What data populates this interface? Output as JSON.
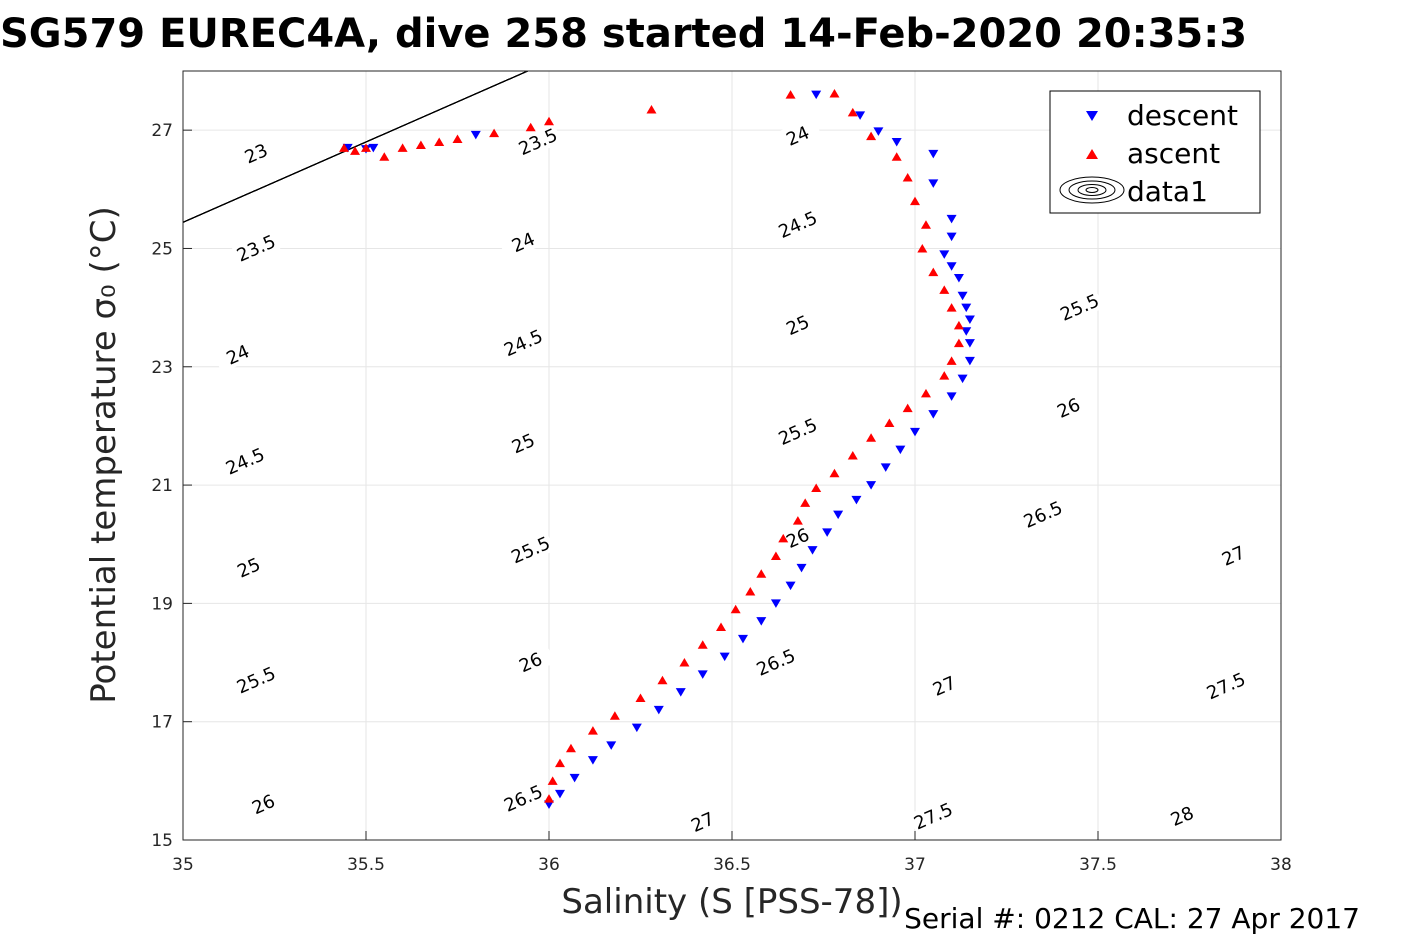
{
  "chart_data": {
    "type": "scatter",
    "title": "SG579 EUREC4A, dive 258 started 14-Feb-2020 20:35:3",
    "xlabel": "Salinity (S [PSS-78])",
    "ylabel": "Potential temperature σ₀ (°C)",
    "xlim": [
      35,
      38
    ],
    "ylim": [
      15,
      28
    ],
    "xticks": [
      "35",
      "35.5",
      "36",
      "36.5",
      "37",
      "37.5",
      "38"
    ],
    "yticks": [
      "15",
      "17",
      "19",
      "21",
      "23",
      "25",
      "27"
    ],
    "grid": true,
    "legend_position": "top-right",
    "legend": [
      "descent",
      "ascent",
      "data1"
    ],
    "footer": "Serial #: 0212  CAL: 27 Apr 2017",
    "contour_levels": [
      23,
      23.5,
      24,
      24.5,
      25,
      25.5,
      26,
      26.5,
      27,
      27.5,
      28
    ],
    "contour_labels": [
      {
        "text": "23",
        "x": 35.2,
        "y": 26.6
      },
      {
        "text": "23.5",
        "x": 35.2,
        "y": 25.0
      },
      {
        "text": "24",
        "x": 35.15,
        "y": 23.2
      },
      {
        "text": "24.5",
        "x": 35.17,
        "y": 21.4
      },
      {
        "text": "25",
        "x": 35.18,
        "y": 19.6
      },
      {
        "text": "25.5",
        "x": 35.2,
        "y": 17.7
      },
      {
        "text": "26",
        "x": 35.22,
        "y": 15.6
      },
      {
        "text": "23.5",
        "x": 35.97,
        "y": 26.8
      },
      {
        "text": "24",
        "x": 35.93,
        "y": 25.1
      },
      {
        "text": "24.5",
        "x": 35.93,
        "y": 23.4
      },
      {
        "text": "25",
        "x": 35.93,
        "y": 21.7
      },
      {
        "text": "25.5",
        "x": 35.95,
        "y": 19.9
      },
      {
        "text": "26",
        "x": 35.95,
        "y": 18.0
      },
      {
        "text": "26.5",
        "x": 35.93,
        "y": 15.7
      },
      {
        "text": "24",
        "x": 36.68,
        "y": 26.9
      },
      {
        "text": "24.5",
        "x": 36.68,
        "y": 25.4
      },
      {
        "text": "25",
        "x": 36.68,
        "y": 23.7
      },
      {
        "text": "25.5",
        "x": 36.68,
        "y": 21.9
      },
      {
        "text": "26",
        "x": 36.68,
        "y": 20.1
      },
      {
        "text": "26.5",
        "x": 36.62,
        "y": 18.0
      },
      {
        "text": "27",
        "x": 36.42,
        "y": 15.3
      },
      {
        "text": "25.5",
        "x": 37.45,
        "y": 24.0
      },
      {
        "text": "26",
        "x": 37.42,
        "y": 22.3
      },
      {
        "text": "26.5",
        "x": 37.35,
        "y": 20.5
      },
      {
        "text": "27",
        "x": 37.08,
        "y": 17.6
      },
      {
        "text": "27.5",
        "x": 37.05,
        "y": 15.4
      },
      {
        "text": "27",
        "x": 37.87,
        "y": 19.8
      },
      {
        "text": "27.5",
        "x": 37.85,
        "y": 17.6
      },
      {
        "text": "28",
        "x": 37.73,
        "y": 15.4
      }
    ],
    "series": [
      {
        "name": "descent",
        "marker": "triangle-down",
        "color": "#0000ff",
        "points": [
          [
            35.45,
            26.7
          ],
          [
            35.5,
            26.68
          ],
          [
            35.52,
            26.7
          ],
          [
            35.8,
            26.92
          ],
          [
            36.73,
            27.6
          ],
          [
            36.85,
            27.25
          ],
          [
            36.9,
            26.98
          ],
          [
            36.95,
            26.8
          ],
          [
            37.05,
            26.6
          ],
          [
            37.05,
            26.1
          ],
          [
            37.1,
            25.5
          ],
          [
            37.1,
            25.2
          ],
          [
            37.08,
            24.9
          ],
          [
            37.1,
            24.7
          ],
          [
            37.12,
            24.5
          ],
          [
            37.13,
            24.2
          ],
          [
            37.14,
            24.0
          ],
          [
            37.15,
            23.8
          ],
          [
            37.14,
            23.6
          ],
          [
            37.15,
            23.4
          ],
          [
            37.15,
            23.1
          ],
          [
            37.13,
            22.8
          ],
          [
            37.1,
            22.5
          ],
          [
            37.05,
            22.2
          ],
          [
            37.0,
            21.9
          ],
          [
            36.96,
            21.6
          ],
          [
            36.92,
            21.3
          ],
          [
            36.88,
            21.0
          ],
          [
            36.84,
            20.75
          ],
          [
            36.79,
            20.5
          ],
          [
            36.76,
            20.2
          ],
          [
            36.72,
            19.9
          ],
          [
            36.69,
            19.6
          ],
          [
            36.66,
            19.3
          ],
          [
            36.62,
            19.0
          ],
          [
            36.58,
            18.7
          ],
          [
            36.53,
            18.4
          ],
          [
            36.48,
            18.1
          ],
          [
            36.42,
            17.8
          ],
          [
            36.36,
            17.5
          ],
          [
            36.3,
            17.2
          ],
          [
            36.24,
            16.9
          ],
          [
            36.17,
            16.6
          ],
          [
            36.12,
            16.35
          ],
          [
            36.07,
            16.05
          ],
          [
            36.03,
            15.78
          ],
          [
            36.0,
            15.6
          ]
        ]
      },
      {
        "name": "ascent",
        "marker": "triangle-up",
        "color": "#ff0000",
        "points": [
          [
            35.44,
            26.7
          ],
          [
            35.47,
            26.65
          ],
          [
            35.5,
            26.7
          ],
          [
            35.55,
            26.55
          ],
          [
            35.6,
            26.7
          ],
          [
            35.65,
            26.75
          ],
          [
            35.7,
            26.8
          ],
          [
            35.75,
            26.85
          ],
          [
            35.85,
            26.95
          ],
          [
            35.95,
            27.05
          ],
          [
            36.0,
            27.15
          ],
          [
            36.28,
            27.35
          ],
          [
            36.66,
            27.6
          ],
          [
            36.78,
            27.62
          ],
          [
            36.83,
            27.3
          ],
          [
            36.88,
            26.9
          ],
          [
            36.95,
            26.55
          ],
          [
            36.98,
            26.2
          ],
          [
            37.0,
            25.8
          ],
          [
            37.03,
            25.4
          ],
          [
            37.02,
            25.0
          ],
          [
            37.05,
            24.6
          ],
          [
            37.08,
            24.3
          ],
          [
            37.1,
            24.0
          ],
          [
            37.12,
            23.7
          ],
          [
            37.12,
            23.4
          ],
          [
            37.1,
            23.1
          ],
          [
            37.08,
            22.85
          ],
          [
            37.03,
            22.55
          ],
          [
            36.98,
            22.3
          ],
          [
            36.93,
            22.05
          ],
          [
            36.88,
            21.8
          ],
          [
            36.83,
            21.5
          ],
          [
            36.78,
            21.2
          ],
          [
            36.73,
            20.95
          ],
          [
            36.7,
            20.7
          ],
          [
            36.68,
            20.4
          ],
          [
            36.64,
            20.1
          ],
          [
            36.62,
            19.8
          ],
          [
            36.58,
            19.5
          ],
          [
            36.55,
            19.2
          ],
          [
            36.51,
            18.9
          ],
          [
            36.47,
            18.6
          ],
          [
            36.42,
            18.3
          ],
          [
            36.37,
            18.0
          ],
          [
            36.31,
            17.7
          ],
          [
            36.25,
            17.4
          ],
          [
            36.18,
            17.1
          ],
          [
            36.12,
            16.85
          ],
          [
            36.06,
            16.55
          ],
          [
            36.03,
            16.3
          ],
          [
            36.01,
            16.0
          ],
          [
            36.0,
            15.7
          ]
        ]
      }
    ]
  }
}
